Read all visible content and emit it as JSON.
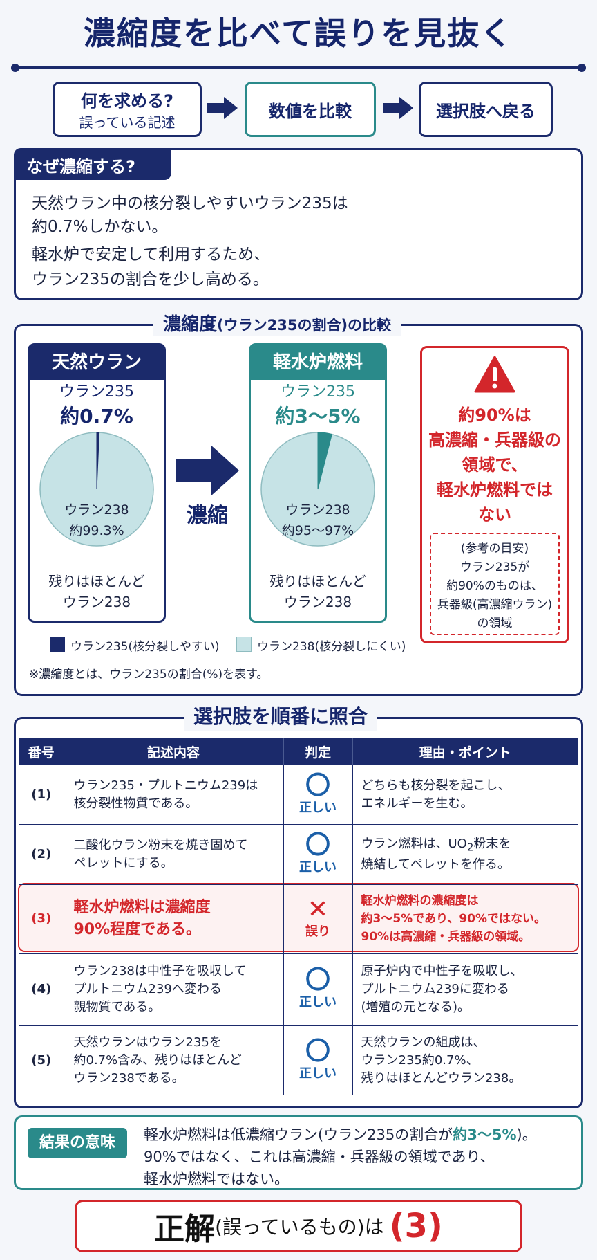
{
  "title": "濃縮度を比べて誤りを見抜く",
  "flow": {
    "step1_main": "何を求める?",
    "step1_sub": "誤っている記述",
    "step2": "数値を比較",
    "step3": "選択肢へ戻る"
  },
  "why": {
    "heading": "なぜ濃縮する?",
    "lines": [
      "天然ウラン中の核分裂しやすいウラン235は",
      "約0.7%しかない。",
      "軽水炉で安定して利用するため、",
      "ウラン235の割合を少し高める。"
    ]
  },
  "comparison": {
    "heading_main": "濃縮度",
    "heading_paren": "(ウラン235の割合)",
    "heading_tail": "の比較",
    "arrow_label": "濃縮",
    "natural": {
      "title": "天然ウラン",
      "u235_label": "ウラン235",
      "u235_value": "約0.7%",
      "u238_label": "ウラン238",
      "u238_value": "約99.3%",
      "rest_line1": "残りはほとんど",
      "rest_line2": "ウラン238"
    },
    "lwr": {
      "title": "軽水炉燃料",
      "u235_label": "ウラン235",
      "u235_value": "約3〜5%",
      "u238_label": "ウラン238",
      "u238_value": "約95〜97%",
      "rest_line1": "残りはほとんど",
      "rest_line2": "ウラン238"
    },
    "warning": {
      "lines": [
        "約90%は",
        "高濃縮・兵器級の",
        "領域で、",
        "軽水炉燃料では",
        "ない"
      ],
      "note_lines": [
        "(参考の目安)",
        "ウラン235が",
        "約90%のものは、",
        "兵器級(高濃縮ウラン)",
        "の領域"
      ]
    },
    "legend": {
      "u235": "ウラン235(核分裂しやすい)",
      "u238": "ウラン238(核分裂しにくい)"
    },
    "footnote": "※濃縮度とは、ウラン235の割合(%)を表す。"
  },
  "chart_data": [
    {
      "type": "pie",
      "title": "天然ウラン",
      "labels": [
        "ウラン235",
        "ウラン238"
      ],
      "values": [
        0.7,
        99.3
      ]
    },
    {
      "type": "pie",
      "title": "軽水炉燃料",
      "labels": [
        "ウラン235",
        "ウラン238"
      ],
      "values": [
        4,
        96
      ]
    }
  ],
  "colors": {
    "navy": "#1b2a6b",
    "teal": "#2a8a8a",
    "pie_fill": "#c6e3e6",
    "red": "#d3262b"
  },
  "options": {
    "heading": "選択肢を順番に照合",
    "headers": [
      "番号",
      "記述内容",
      "判定",
      "理由・ポイント"
    ],
    "rows": [
      {
        "num": "(1)",
        "desc": [
          "ウラン235・プルトニウム239は",
          "核分裂性物質である。"
        ],
        "mark": "〇",
        "judge": "正しい",
        "reason": [
          "どちらも核分裂を起こし、",
          "エネルギーを生む。"
        ]
      },
      {
        "num": "(2)",
        "desc": [
          "二酸化ウラン粉末を焼き固めて",
          "ペレットにする。"
        ],
        "mark": "〇",
        "judge": "正しい",
        "reason_pre": "ウラン燃料は、UO",
        "reason_sub": "2",
        "reason_post": "粉末を",
        "reason2": "焼結してペレットを作る。"
      },
      {
        "num": "(3)",
        "desc": [
          "軽水炉燃料は濃縮度",
          "90%程度である。"
        ],
        "mark": "✕",
        "judge": "誤り",
        "reason": [
          "軽水炉燃料の濃縮度は",
          "約3〜5%であり、90%ではない。",
          "90%は高濃縮・兵器級の領域。"
        ]
      },
      {
        "num": "(4)",
        "desc": [
          "ウラン238は中性子を吸収して",
          "プルトニウム239へ変わる",
          "親物質である。"
        ],
        "mark": "〇",
        "judge": "正しい",
        "reason": [
          "原子炉内で中性子を吸収し、",
          "プルトニウム239に変わる",
          "(増殖の元となる)。"
        ]
      },
      {
        "num": "(5)",
        "desc": [
          "天然ウランはウラン235を",
          "約0.7%含み、残りはほとんど",
          "ウラン238である。"
        ],
        "mark": "〇",
        "judge": "正しい",
        "reason": [
          "天然ウランの組成は、",
          "ウラン235約0.7%、",
          "残りはほとんどウラン238。"
        ]
      }
    ]
  },
  "result": {
    "tag": "結果の意味",
    "line1_pre": "軽水炉燃料は低濃縮ウラン(ウラン235の割合が",
    "line1_em": "約3〜5%",
    "line1_post": ")。",
    "line2": "90%ではなく、これは高濃縮・兵器級の領域であり、",
    "line3": "軽水炉燃料ではない。"
  },
  "answer": {
    "big": "正解",
    "mid": "(誤っているもの)は",
    "value": "(3)"
  }
}
